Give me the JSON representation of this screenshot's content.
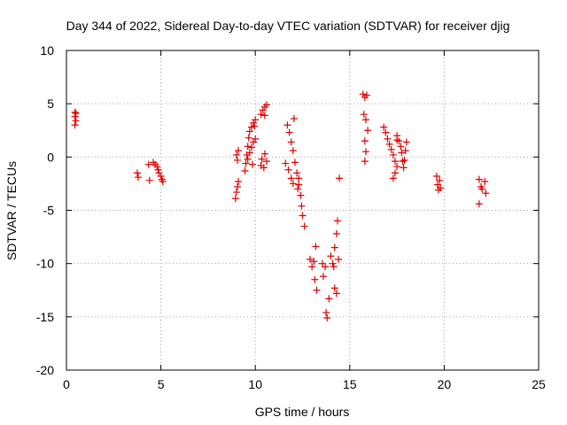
{
  "colors": {
    "series": "#e00000",
    "grid": "#a0a0a0",
    "axis": "#000000"
  },
  "chart_data": {
    "type": "scatter",
    "title": "Day 344 of 2022, Sidereal Day-to-day VTEC variation (SDTVAR) for receiver djig",
    "xlabel": "GPS time / hours",
    "ylabel": "SDTVAR / TECUs",
    "xlim": [
      0,
      25
    ],
    "ylim": [
      -20,
      10
    ],
    "xticks": [
      "0",
      "5",
      "10",
      "15",
      "20",
      "25"
    ],
    "yticks": [
      "-20",
      "-15",
      "-10",
      "-5",
      "0",
      "5",
      "10"
    ],
    "grid": true,
    "marker": "plus",
    "points": [
      [
        0.45,
        4.2
      ],
      [
        0.45,
        3.8
      ],
      [
        0.5,
        3.4
      ],
      [
        0.45,
        3.0
      ],
      [
        0.5,
        4.1
      ],
      [
        3.75,
        -1.5
      ],
      [
        3.8,
        -1.9
      ],
      [
        4.35,
        -0.7
      ],
      [
        4.4,
        -2.2
      ],
      [
        4.6,
        -0.5
      ],
      [
        4.7,
        -0.7
      ],
      [
        4.8,
        -0.9
      ],
      [
        4.85,
        -1.2
      ],
      [
        4.9,
        -1.5
      ],
      [
        5.0,
        -1.8
      ],
      [
        5.05,
        -2.1
      ],
      [
        5.1,
        -2.3
      ],
      [
        8.95,
        -3.9
      ],
      [
        9.0,
        -3.3
      ],
      [
        9.05,
        -2.8
      ],
      [
        9.1,
        -2.3
      ],
      [
        9.0,
        0.2
      ],
      [
        9.1,
        0.6
      ],
      [
        9.05,
        -0.3
      ],
      [
        9.45,
        -1.3
      ],
      [
        9.5,
        -0.6
      ],
      [
        9.55,
        0.2
      ],
      [
        9.6,
        1.0
      ],
      [
        9.65,
        1.8
      ],
      [
        9.7,
        2.4
      ],
      [
        9.8,
        2.8
      ],
      [
        9.9,
        3.2
      ],
      [
        10.0,
        3.5
      ],
      [
        9.95,
        2.9
      ],
      [
        9.6,
        -0.2
      ],
      [
        9.7,
        0.4
      ],
      [
        9.8,
        0.9
      ],
      [
        9.9,
        1.4
      ],
      [
        10.0,
        1.7
      ],
      [
        9.85,
        -0.7
      ],
      [
        10.3,
        4.0
      ],
      [
        10.4,
        4.4
      ],
      [
        10.5,
        4.7
      ],
      [
        10.6,
        4.9
      ],
      [
        10.5,
        3.9
      ],
      [
        10.3,
        -0.8
      ],
      [
        10.35,
        -0.2
      ],
      [
        10.5,
        0.3
      ],
      [
        10.6,
        -0.4
      ],
      [
        10.45,
        -1.0
      ],
      [
        11.7,
        3.0
      ],
      [
        11.8,
        2.3
      ],
      [
        11.9,
        1.4
      ],
      [
        12.0,
        0.6
      ],
      [
        12.05,
        3.6
      ],
      [
        12.1,
        -0.5
      ],
      [
        12.2,
        -1.5
      ],
      [
        12.3,
        -2.6
      ],
      [
        12.4,
        -3.6
      ],
      [
        12.45,
        -4.6
      ],
      [
        12.5,
        -5.5
      ],
      [
        12.6,
        -6.5
      ],
      [
        11.6,
        -0.6
      ],
      [
        11.75,
        -1.2
      ],
      [
        11.9,
        -2.0
      ],
      [
        12.0,
        -2.5
      ],
      [
        12.25,
        -3.0
      ],
      [
        12.3,
        -2.0
      ],
      [
        12.9,
        -9.6
      ],
      [
        13.0,
        -10.3
      ],
      [
        13.1,
        -9.8
      ],
      [
        13.2,
        -8.4
      ],
      [
        13.15,
        -11.5
      ],
      [
        13.25,
        -12.5
      ],
      [
        13.55,
        -10.0
      ],
      [
        13.6,
        -11.2
      ],
      [
        13.7,
        -10.3
      ],
      [
        13.75,
        -14.6
      ],
      [
        13.8,
        -15.1
      ],
      [
        13.9,
        -13.3
      ],
      [
        14.0,
        -9.3
      ],
      [
        14.1,
        -10.0
      ],
      [
        14.2,
        -8.5
      ],
      [
        14.3,
        -7.2
      ],
      [
        14.35,
        -6.0
      ],
      [
        14.3,
        -12.8
      ],
      [
        14.2,
        -12.3
      ],
      [
        14.4,
        -9.6
      ],
      [
        14.45,
        -2.0
      ],
      [
        14.15,
        -10.3
      ],
      [
        15.7,
        5.9
      ],
      [
        15.8,
        5.6
      ],
      [
        15.9,
        5.8
      ],
      [
        15.75,
        4.0
      ],
      [
        15.85,
        3.5
      ],
      [
        15.8,
        1.5
      ],
      [
        15.85,
        0.5
      ],
      [
        15.8,
        -0.4
      ],
      [
        15.95,
        2.5
      ],
      [
        16.8,
        2.8
      ],
      [
        16.9,
        2.3
      ],
      [
        17.0,
        1.7
      ],
      [
        17.1,
        1.2
      ],
      [
        17.2,
        0.7
      ],
      [
        17.3,
        0.2
      ],
      [
        17.4,
        -0.4
      ],
      [
        17.5,
        -0.9
      ],
      [
        17.4,
        -1.5
      ],
      [
        17.3,
        -2.0
      ],
      [
        17.5,
        2.0
      ],
      [
        17.6,
        1.5
      ],
      [
        17.7,
        1.0
      ],
      [
        17.75,
        0.4
      ],
      [
        17.8,
        -0.4
      ],
      [
        17.85,
        -1.0
      ],
      [
        17.9,
        -0.3
      ],
      [
        17.95,
        0.6
      ],
      [
        18.0,
        1.4
      ],
      [
        17.5,
        1.6
      ],
      [
        19.6,
        -1.8
      ],
      [
        19.65,
        -2.6
      ],
      [
        19.7,
        -3.1
      ],
      [
        19.75,
        -2.2
      ],
      [
        19.8,
        -2.9
      ],
      [
        21.85,
        -2.1
      ],
      [
        21.95,
        -2.8
      ],
      [
        21.85,
        -4.4
      ],
      [
        22.0,
        -3.0
      ],
      [
        22.15,
        -2.3
      ],
      [
        22.2,
        -3.4
      ]
    ]
  }
}
